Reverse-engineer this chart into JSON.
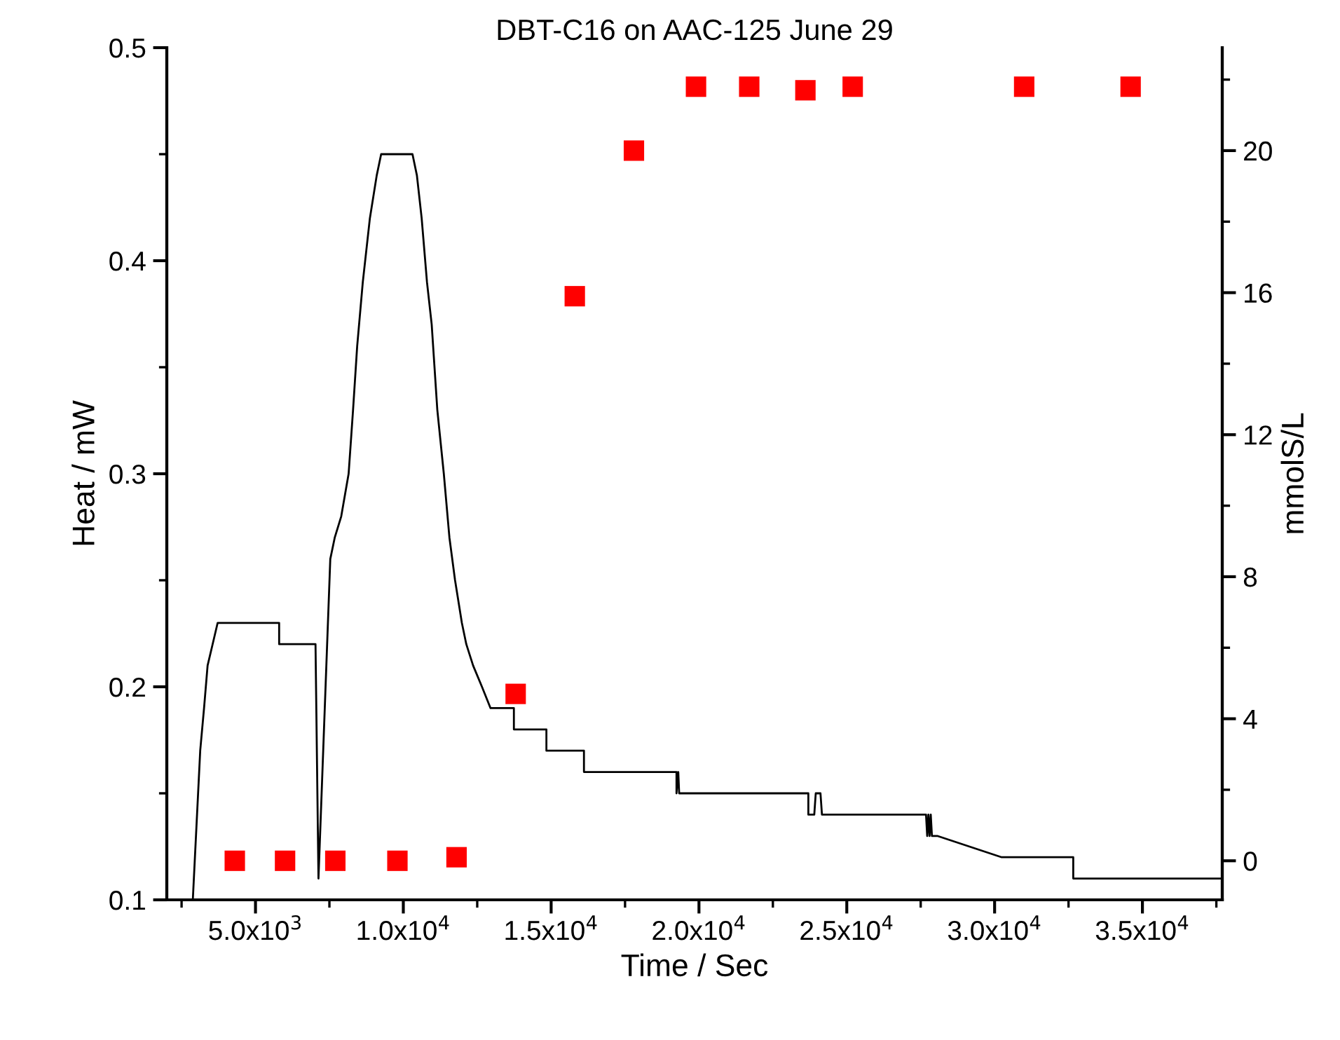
{
  "chart_data": {
    "type": "line",
    "title": "DBT-C16 on AAC-125 June 29",
    "xlabel": "Time / Sec",
    "ylabel": "Heat / mW",
    "y2label": "mmolS/L",
    "xlim": [
      2000,
      37700
    ],
    "xticks": [
      {
        "value": 5000,
        "label": "5.0x10$^{3}$"
      },
      {
        "value": 10000,
        "label": "1.0x10$^{4}$"
      },
      {
        "value": 15000,
        "label": "1.5x10$^{4}$"
      },
      {
        "value": 20000,
        "label": "2.0x10$^{4}$"
      },
      {
        "value": 25000,
        "label": "2.5x10$^{4}$"
      },
      {
        "value": 30000,
        "label": "3.0x10$^{4}$"
      },
      {
        "value": 35000,
        "label": "3.5x10$^{4}$"
      }
    ],
    "ylim": [
      0.1,
      0.5
    ],
    "yticks": [
      0.1,
      0.2,
      0.3,
      0.4,
      0.5
    ],
    "y2lim": [
      -1.1,
      22.9
    ],
    "y2ticks": [
      0,
      4,
      8,
      12,
      16,
      20
    ],
    "grid": false,
    "series": [
      {
        "color": "#000000",
        "line_style": "solid",
        "marker": "none",
        "x": [
          2880,
          3130,
          3260,
          3380,
          3550,
          3720,
          5800,
          5800,
          7030,
          7130,
          7530,
          7680,
          7900,
          8150,
          8300,
          8440,
          8630,
          8870,
          9100,
          9250,
          10310,
          10460,
          10620,
          10800,
          10960,
          11150,
          11370,
          11560,
          11750,
          11980,
          12130,
          12360,
          12660,
          12950,
          13740,
          13740,
          14840,
          14840,
          16110,
          16110,
          19240,
          19240,
          19300,
          19330,
          19370,
          23700,
          23700,
          23900,
          23950,
          24110,
          24160,
          24260,
          27680,
          27720,
          27760,
          27800,
          27840,
          27880,
          28060,
          30240,
          32660,
          32660,
          37700
        ],
        "values": [
          0.1,
          0.17,
          0.19,
          0.21,
          0.22,
          0.23,
          0.23,
          0.22,
          0.22,
          0.11,
          0.26,
          0.27,
          0.28,
          0.3,
          0.33,
          0.36,
          0.39,
          0.42,
          0.44,
          0.45,
          0.45,
          0.44,
          0.42,
          0.39,
          0.37,
          0.33,
          0.3,
          0.27,
          0.25,
          0.23,
          0.22,
          0.21,
          0.2,
          0.19,
          0.19,
          0.18,
          0.18,
          0.17,
          0.17,
          0.16,
          0.16,
          0.15,
          0.16,
          0.15,
          0.15,
          0.15,
          0.14,
          0.14,
          0.15,
          0.15,
          0.14,
          0.14,
          0.14,
          0.13,
          0.14,
          0.13,
          0.14,
          0.13,
          0.13,
          0.12,
          0.12,
          0.11,
          0.11
        ]
      },
      {
        "type": "scatter",
        "axis": "y2",
        "color": "#ff0000",
        "marker": "square",
        "x": [
          4300,
          6000,
          7700,
          9800,
          11800,
          13800,
          15800,
          17800,
          19900,
          21700,
          23600,
          25200,
          31000,
          34600
        ],
        "values": [
          0,
          0,
          0,
          0,
          0.1,
          4.7,
          15.9,
          20.0,
          21.8,
          21.8,
          21.7,
          21.8,
          21.8,
          21.8
        ]
      }
    ]
  }
}
